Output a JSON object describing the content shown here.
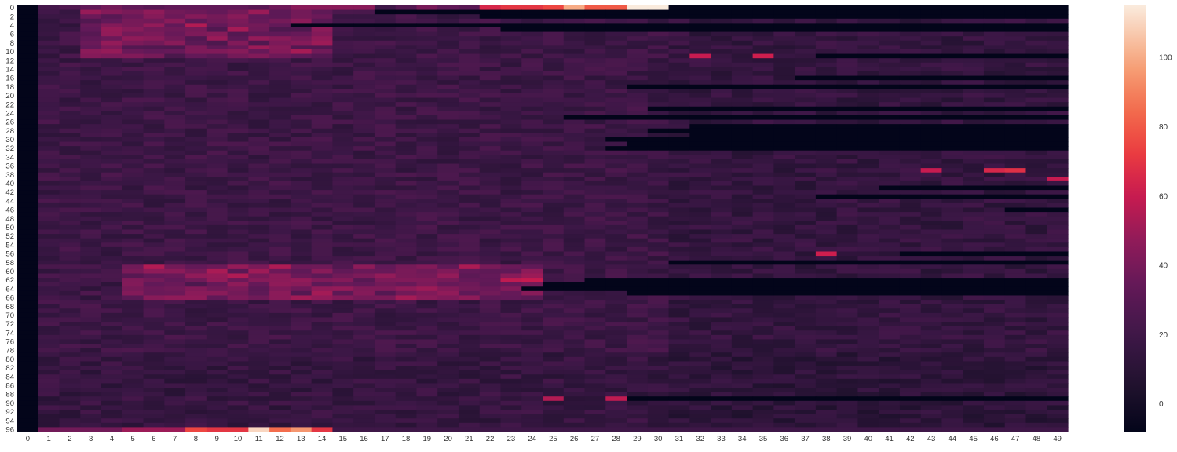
{
  "chart_data": {
    "type": "heatmap",
    "title": "",
    "xlabel": "",
    "ylabel": "",
    "n_rows": 97,
    "n_cols": 50,
    "x_tick_labels": [
      "0",
      "1",
      "2",
      "3",
      "4",
      "5",
      "6",
      "7",
      "8",
      "9",
      "10",
      "11",
      "12",
      "13",
      "14",
      "15",
      "16",
      "17",
      "18",
      "19",
      "20",
      "21",
      "22",
      "23",
      "24",
      "25",
      "26",
      "27",
      "28",
      "29",
      "30",
      "31",
      "32",
      "33",
      "34",
      "35",
      "36",
      "37",
      "38",
      "39",
      "40",
      "41",
      "42",
      "43",
      "44",
      "45",
      "46",
      "47",
      "48",
      "49"
    ],
    "y_tick_labels": [
      "0",
      "2",
      "4",
      "6",
      "8",
      "10",
      "12",
      "14",
      "16",
      "18",
      "20",
      "22",
      "24",
      "26",
      "28",
      "30",
      "32",
      "34",
      "36",
      "38",
      "40",
      "42",
      "44",
      "46",
      "48",
      "50",
      "52",
      "54",
      "56",
      "58",
      "60",
      "62",
      "64",
      "66",
      "68",
      "70",
      "72",
      "74",
      "76",
      "78",
      "80",
      "82",
      "84",
      "86",
      "88",
      "90",
      "92",
      "94",
      "96"
    ],
    "colorbar": {
      "ticks": [
        0,
        20,
        40,
        60,
        80,
        100
      ],
      "vmin": -8,
      "vmax": 115,
      "colormap": "rocket"
    },
    "row_lengths": [
      31,
      17,
      22,
      50,
      13,
      23,
      50,
      50,
      50,
      50,
      50,
      38,
      50,
      50,
      50,
      50,
      37,
      50,
      29,
      50,
      50,
      50,
      50,
      30,
      50,
      26,
      50,
      32,
      30,
      32,
      28,
      29,
      28,
      50,
      50,
      50,
      50,
      50,
      50,
      50,
      50,
      41,
      50,
      38,
      50,
      50,
      47,
      50,
      50,
      50,
      50,
      50,
      50,
      50,
      50,
      50,
      42,
      50,
      31,
      50,
      50,
      50,
      27,
      25,
      24,
      29,
      50,
      50,
      50,
      50,
      50,
      50,
      50,
      50,
      50,
      50,
      50,
      50,
      50,
      50,
      50,
      50,
      50,
      50,
      50,
      50,
      50,
      50,
      50,
      29,
      50,
      50,
      50,
      50,
      50,
      50,
      50
    ],
    "values_row_0": [
      -8,
      22,
      27,
      33,
      38,
      33,
      30,
      33,
      33,
      33,
      33,
      30,
      37,
      45,
      45,
      45,
      45,
      20,
      28,
      40,
      33,
      30,
      65,
      70,
      70,
      75,
      100,
      80,
      80,
      115,
      115
    ],
    "values_row_96": [
      -8,
      38,
      38,
      38,
      38,
      50,
      50,
      50,
      75,
      70,
      70,
      110,
      85,
      95,
      70,
      20,
      20,
      20,
      20,
      20,
      20,
      20,
      20,
      20,
      20,
      20,
      20,
      20,
      20,
      20,
      20,
      20,
      20,
      20,
      20,
      20,
      20,
      20,
      20,
      20,
      20,
      20,
      20,
      20,
      20,
      20,
      20,
      20,
      20,
      20
    ],
    "hotspots": [
      {
        "row": 4,
        "col": 8,
        "value": 55
      },
      {
        "row": 5,
        "col": 10,
        "value": 52
      },
      {
        "row": 9,
        "col": 11,
        "value": 50
      },
      {
        "row": 11,
        "col": 32,
        "value": 60
      },
      {
        "row": 11,
        "col": 35,
        "value": 62
      },
      {
        "row": 37,
        "col": 43,
        "value": 60
      },
      {
        "row": 37,
        "col": 46,
        "value": 65
      },
      {
        "row": 37,
        "col": 47,
        "value": 68
      },
      {
        "row": 39,
        "col": 49,
        "value": 60
      },
      {
        "row": 56,
        "col": 38,
        "value": 62
      },
      {
        "row": 62,
        "col": 23,
        "value": 58
      },
      {
        "row": 62,
        "col": 24,
        "value": 60
      },
      {
        "row": 63,
        "col": 25,
        "value": 55
      },
      {
        "row": 89,
        "col": 25,
        "value": 55
      },
      {
        "row": 89,
        "col": 28,
        "value": 58
      }
    ]
  }
}
